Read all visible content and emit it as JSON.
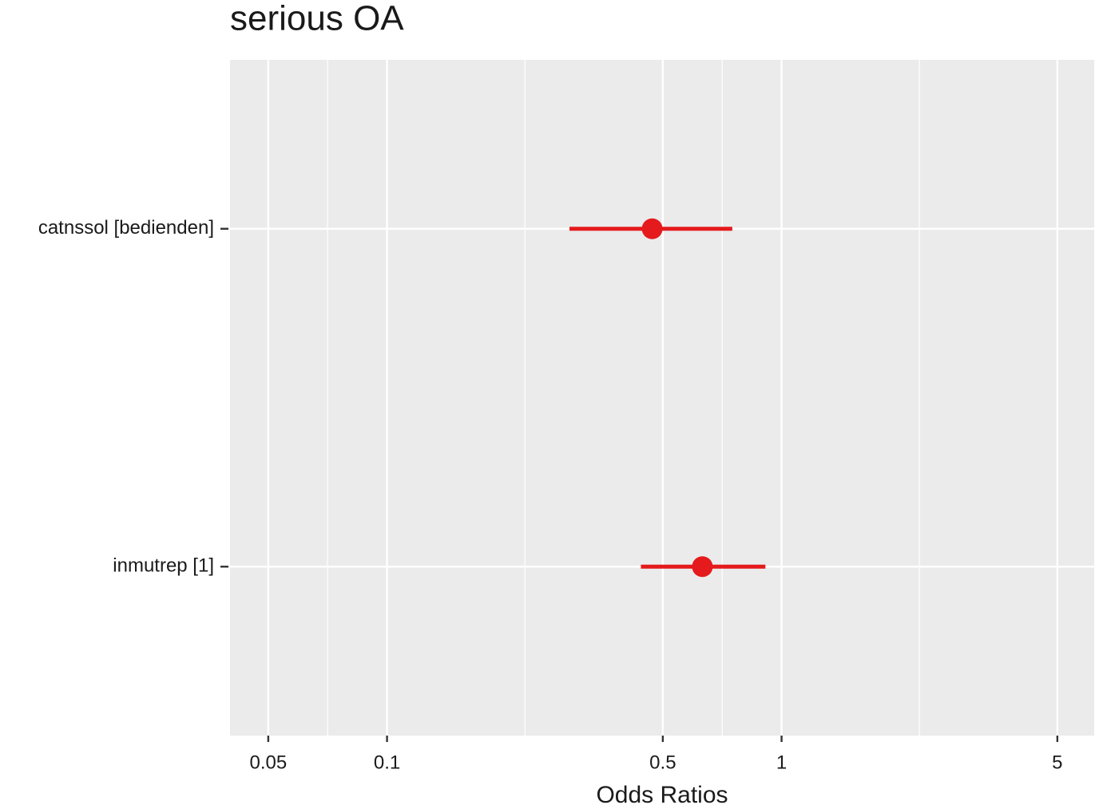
{
  "chart_data": {
    "type": "forest",
    "title": "serious OA",
    "x_label": "Odds Ratios",
    "categories": [
      "catnssol [bedienden]",
      "inmutrep [1]"
    ],
    "values": [
      0.47,
      0.63
    ],
    "lower": [
      0.29,
      0.44
    ],
    "upper": [
      0.75,
      0.91
    ],
    "color": "#e41a1c",
    "xlog": true,
    "xlim": [
      0.04,
      6.2
    ],
    "xticks": [
      0.05,
      0.1,
      0.5,
      1,
      5
    ],
    "xminor": [
      0.0707,
      0.2236,
      0.7071,
      2.2361
    ],
    "grid": true
  }
}
